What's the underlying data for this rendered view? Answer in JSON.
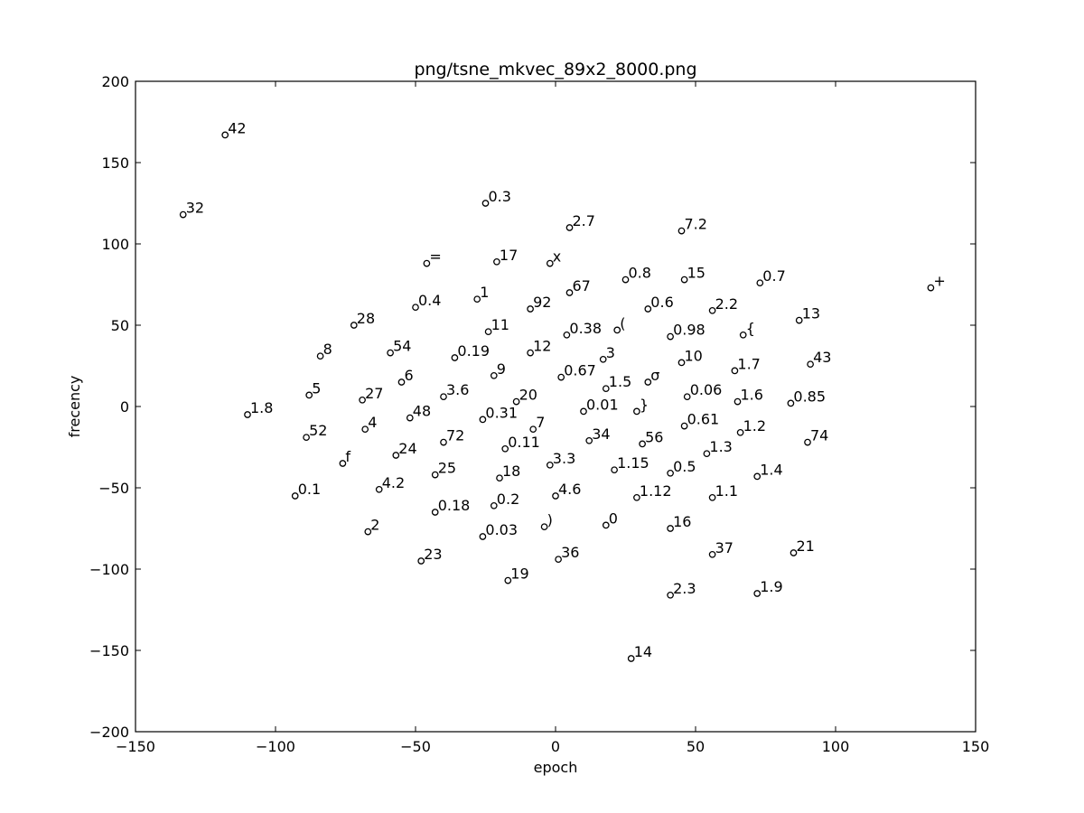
{
  "chart_data": {
    "type": "scatter",
    "title": "png/tsne_mkvec_89x2_8000.png",
    "xlabel": "epoch",
    "ylabel": "frecency",
    "xlim": [
      -150,
      150
    ],
    "ylim": [
      -200,
      200
    ],
    "xticks": [
      -150,
      -100,
      -50,
      0,
      50,
      100,
      150
    ],
    "yticks": [
      -200,
      -150,
      -100,
      -50,
      0,
      50,
      100,
      150,
      200
    ],
    "grid": false,
    "marker": "open-circle",
    "points": [
      {
        "label": "42",
        "x": -118,
        "y": 167
      },
      {
        "label": "32",
        "x": -133,
        "y": 118
      },
      {
        "label": "0.3",
        "x": -25,
        "y": 125
      },
      {
        "label": "2.7",
        "x": 5,
        "y": 110
      },
      {
        "label": "7.2",
        "x": 45,
        "y": 108
      },
      {
        "label": "+",
        "x": 134,
        "y": 73
      },
      {
        "label": "=",
        "x": -46,
        "y": 88
      },
      {
        "label": "17",
        "x": -21,
        "y": 89
      },
      {
        "label": "x",
        "x": -2,
        "y": 88
      },
      {
        "label": "0.8",
        "x": 25,
        "y": 78
      },
      {
        "label": "15",
        "x": 46,
        "y": 78
      },
      {
        "label": "0.7",
        "x": 73,
        "y": 76
      },
      {
        "label": "67",
        "x": 5,
        "y": 70
      },
      {
        "label": "0.4",
        "x": -50,
        "y": 61
      },
      {
        "label": "1",
        "x": -28,
        "y": 66
      },
      {
        "label": "92",
        "x": -9,
        "y": 60
      },
      {
        "label": "0.6",
        "x": 33,
        "y": 60
      },
      {
        "label": "2.2",
        "x": 56,
        "y": 59
      },
      {
        "label": "13",
        "x": 87,
        "y": 53
      },
      {
        "label": "28",
        "x": -72,
        "y": 50
      },
      {
        "label": "11",
        "x": -24,
        "y": 46
      },
      {
        "label": "0.38",
        "x": 4,
        "y": 44
      },
      {
        "label": "(",
        "x": 22,
        "y": 47
      },
      {
        "label": "0.98",
        "x": 41,
        "y": 43
      },
      {
        "label": "{",
        "x": 67,
        "y": 44
      },
      {
        "label": "8",
        "x": -84,
        "y": 31
      },
      {
        "label": "54",
        "x": -59,
        "y": 33
      },
      {
        "label": "0.19",
        "x": -36,
        "y": 30
      },
      {
        "label": "12",
        "x": -9,
        "y": 33
      },
      {
        "label": "3",
        "x": 17,
        "y": 29
      },
      {
        "label": "10",
        "x": 45,
        "y": 27
      },
      {
        "label": "1.7",
        "x": 64,
        "y": 22
      },
      {
        "label": "43",
        "x": 91,
        "y": 26
      },
      {
        "label": "6",
        "x": -55,
        "y": 15
      },
      {
        "label": "9",
        "x": -22,
        "y": 19
      },
      {
        "label": "0.67",
        "x": 2,
        "y": 18
      },
      {
        "label": "1.5",
        "x": 18,
        "y": 11
      },
      {
        "label": "σ",
        "x": 33,
        "y": 15
      },
      {
        "label": "5",
        "x": -88,
        "y": 7
      },
      {
        "label": "27",
        "x": -69,
        "y": 4
      },
      {
        "label": "3.6",
        "x": -40,
        "y": 6
      },
      {
        "label": "20",
        "x": -14,
        "y": 3
      },
      {
        "label": "0.06",
        "x": 47,
        "y": 6
      },
      {
        "label": "1.6",
        "x": 65,
        "y": 3
      },
      {
        "label": "0.85",
        "x": 84,
        "y": 2
      },
      {
        "label": "1.8",
        "x": -110,
        "y": -5
      },
      {
        "label": "48",
        "x": -52,
        "y": -7
      },
      {
        "label": "0.31",
        "x": -26,
        "y": -8
      },
      {
        "label": "0.01",
        "x": 10,
        "y": -3
      },
      {
        "label": "}",
        "x": 29,
        "y": -3
      },
      {
        "label": "52",
        "x": -89,
        "y": -19
      },
      {
        "label": "4",
        "x": -68,
        "y": -14
      },
      {
        "label": "7",
        "x": -8,
        "y": -14
      },
      {
        "label": "0.61",
        "x": 46,
        "y": -12
      },
      {
        "label": "1.2",
        "x": 66,
        "y": -16
      },
      {
        "label": "74",
        "x": 90,
        "y": -22
      },
      {
        "label": "72",
        "x": -40,
        "y": -22
      },
      {
        "label": "0.11",
        "x": -18,
        "y": -26
      },
      {
        "label": "34",
        "x": 12,
        "y": -21
      },
      {
        "label": "56",
        "x": 31,
        "y": -23
      },
      {
        "label": "1.3",
        "x": 54,
        "y": -29
      },
      {
        "label": "f",
        "x": -76,
        "y": -35
      },
      {
        "label": "24",
        "x": -57,
        "y": -30
      },
      {
        "label": "3.3",
        "x": -2,
        "y": -36
      },
      {
        "label": "25",
        "x": -43,
        "y": -42
      },
      {
        "label": "18",
        "x": -20,
        "y": -44
      },
      {
        "label": "1.15",
        "x": 21,
        "y": -39
      },
      {
        "label": "0.5",
        "x": 41,
        "y": -41
      },
      {
        "label": "1.4",
        "x": 72,
        "y": -43
      },
      {
        "label": "0.1",
        "x": -93,
        "y": -55
      },
      {
        "label": "4.2",
        "x": -63,
        "y": -51
      },
      {
        "label": "4.6",
        "x": 0,
        "y": -55
      },
      {
        "label": "1.12",
        "x": 29,
        "y": -56
      },
      {
        "label": "1.1",
        "x": 56,
        "y": -56
      },
      {
        "label": "0.18",
        "x": -43,
        "y": -65
      },
      {
        "label": "0.2",
        "x": -22,
        "y": -61
      },
      {
        "label": "2",
        "x": -67,
        "y": -77
      },
      {
        "label": ")",
        "x": -4,
        "y": -74
      },
      {
        "label": "0",
        "x": 18,
        "y": -73
      },
      {
        "label": "16",
        "x": 41,
        "y": -75
      },
      {
        "label": "0.03",
        "x": -26,
        "y": -80
      },
      {
        "label": "23",
        "x": -48,
        "y": -95
      },
      {
        "label": "36",
        "x": 1,
        "y": -94
      },
      {
        "label": "37",
        "x": 56,
        "y": -91
      },
      {
        "label": "21",
        "x": 85,
        "y": -90
      },
      {
        "label": "19",
        "x": -17,
        "y": -107
      },
      {
        "label": "2.3",
        "x": 41,
        "y": -116
      },
      {
        "label": "1.9",
        "x": 72,
        "y": -115
      },
      {
        "label": "14",
        "x": 27,
        "y": -155
      }
    ]
  }
}
